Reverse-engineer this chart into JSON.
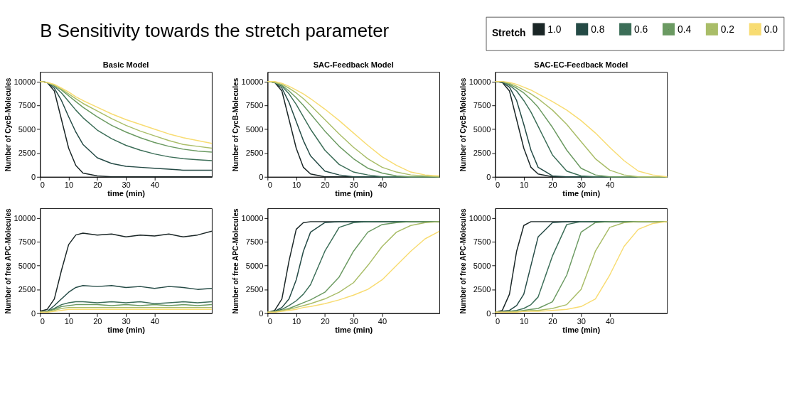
{
  "chart_data": [
    {
      "type": "line",
      "title": "Basic Model",
      "annotations": [
        "B Sensitivity towards the stretch parameter"
      ],
      "legend_title": "Stretch",
      "legend": "top right",
      "xlabel": "time (min)",
      "ylabel": "Number of CycB-Molecules",
      "xlim": [
        0,
        60
      ],
      "xticks": [
        0,
        10,
        20,
        30,
        40
      ],
      "ylim": [
        0,
        11000
      ],
      "yticks": [
        0,
        2500,
        5000,
        7500,
        10000
      ],
      "grid": false,
      "x": [
        0,
        2.5,
        5,
        7.5,
        10,
        12.5,
        15,
        20,
        25,
        30,
        35,
        40,
        45,
        50,
        55,
        60
      ],
      "series": [
        {
          "name": "1.0",
          "color": "#1a2626",
          "values": [
            10000,
            9900,
            9000,
            6000,
            3000,
            1200,
            400,
            100,
            0,
            0,
            0,
            0,
            0,
            0,
            0,
            0
          ]
        },
        {
          "name": "0.8",
          "color": "#244a45",
          "values": [
            10000,
            9900,
            9300,
            8000,
            6300,
            4700,
            3400,
            2000,
            1400,
            1100,
            1000,
            900,
            800,
            700,
            700,
            700
          ]
        },
        {
          "name": "0.6",
          "color": "#3c6e58",
          "values": [
            10000,
            9900,
            9500,
            8800,
            7900,
            7000,
            6200,
            4900,
            4000,
            3300,
            2800,
            2400,
            2100,
            1900,
            1800,
            1700
          ]
        },
        {
          "name": "0.4",
          "color": "#6b9a62",
          "values": [
            10000,
            9900,
            9600,
            9100,
            8500,
            7900,
            7300,
            6300,
            5400,
            4700,
            4100,
            3600,
            3200,
            2900,
            2700,
            2600
          ]
        },
        {
          "name": "0.2",
          "color": "#a9bd68",
          "values": [
            10000,
            9900,
            9600,
            9200,
            8700,
            8200,
            7700,
            6900,
            6100,
            5400,
            4800,
            4300,
            3800,
            3400,
            3200,
            3000
          ]
        },
        {
          "name": "0.0",
          "color": "#f8dc72",
          "values": [
            10000,
            9900,
            9700,
            9300,
            8900,
            8400,
            8000,
            7300,
            6600,
            6000,
            5500,
            5000,
            4500,
            4100,
            3800,
            3500
          ]
        }
      ]
    },
    {
      "type": "line",
      "title": "SAC-Feedback Model",
      "xlabel": "time (min)",
      "ylabel": "Number of CycB-Molecules",
      "xlim": [
        0,
        60
      ],
      "xticks": [
        0,
        10,
        20,
        30,
        40
      ],
      "ylim": [
        0,
        11000
      ],
      "yticks": [
        0,
        2500,
        5000,
        7500,
        10000
      ],
      "grid": false,
      "x": [
        0,
        2.5,
        5,
        7.5,
        10,
        12.5,
        15,
        20,
        25,
        30,
        35,
        40,
        45,
        50,
        55,
        60
      ],
      "series": [
        {
          "color": "#1a2626",
          "values": [
            10000,
            9900,
            9000,
            6000,
            3000,
            1000,
            300,
            0,
            0,
            0,
            0,
            0,
            0,
            0,
            0,
            0
          ]
        },
        {
          "color": "#244a45",
          "values": [
            10000,
            9900,
            9300,
            7800,
            5800,
            3800,
            2200,
            600,
            200,
            0,
            0,
            0,
            0,
            0,
            0,
            0
          ]
        },
        {
          "color": "#3c6e58",
          "values": [
            10000,
            9900,
            9500,
            8700,
            7600,
            6300,
            5000,
            2800,
            1300,
            500,
            200,
            0,
            0,
            0,
            0,
            0
          ]
        },
        {
          "color": "#6b9a62",
          "values": [
            10000,
            9900,
            9600,
            9000,
            8300,
            7500,
            6600,
            4800,
            3200,
            1900,
            900,
            400,
            100,
            0,
            0,
            0
          ]
        },
        {
          "color": "#a9bd68",
          "values": [
            10000,
            9900,
            9700,
            9300,
            8800,
            8200,
            7500,
            6000,
            4500,
            3100,
            1900,
            1000,
            500,
            200,
            100,
            0
          ]
        },
        {
          "color": "#f8dc72",
          "values": [
            10000,
            10000,
            9800,
            9500,
            9100,
            8700,
            8200,
            7100,
            5900,
            4600,
            3300,
            2100,
            1200,
            500,
            200,
            100
          ]
        }
      ]
    },
    {
      "type": "line",
      "title": "SAC-EC-Feedback Model",
      "xlabel": "time (min)",
      "ylabel": "Number of CycB-Molecules",
      "xlim": [
        0,
        60
      ],
      "xticks": [
        0,
        10,
        20,
        30,
        40
      ],
      "ylim": [
        0,
        11000
      ],
      "yticks": [
        0,
        2500,
        5000,
        7500,
        10000
      ],
      "grid": false,
      "x": [
        0,
        2.5,
        5,
        7.5,
        10,
        12.5,
        15,
        20,
        25,
        30,
        35,
        40,
        45,
        50,
        55,
        60
      ],
      "series": [
        {
          "color": "#1a2626",
          "values": [
            10000,
            9900,
            9000,
            6000,
            3000,
            1000,
            300,
            0,
            0,
            0,
            0,
            0,
            0,
            0,
            0,
            0
          ]
        },
        {
          "color": "#244a45",
          "values": [
            10000,
            9900,
            9400,
            8000,
            5500,
            2800,
            1000,
            100,
            0,
            0,
            0,
            0,
            0,
            0,
            0,
            0
          ]
        },
        {
          "color": "#3c6e58",
          "values": [
            10000,
            10000,
            9600,
            9000,
            8000,
            6800,
            5300,
            2300,
            600,
            100,
            0,
            0,
            0,
            0,
            0,
            0
          ]
        },
        {
          "color": "#6b9a62",
          "values": [
            10000,
            10000,
            9700,
            9300,
            8800,
            8100,
            7300,
            5200,
            2800,
            900,
            200,
            0,
            0,
            0,
            0,
            0
          ]
        },
        {
          "color": "#a9bd68",
          "values": [
            10000,
            10000,
            9800,
            9500,
            9100,
            8700,
            8200,
            7000,
            5500,
            3700,
            1900,
            700,
            200,
            0,
            0,
            0
          ]
        },
        {
          "color": "#f8dc72",
          "values": [
            10000,
            10000,
            9900,
            9700,
            9400,
            9100,
            8700,
            7900,
            7000,
            5900,
            4600,
            3100,
            1700,
            600,
            200,
            0
          ]
        }
      ]
    },
    {
      "type": "line",
      "xlabel": "time (min)",
      "ylabel": "Number of free APC-Molecules",
      "xlim": [
        0,
        60
      ],
      "xticks": [
        0,
        10,
        20,
        30,
        40
      ],
      "ylim": [
        0,
        11000
      ],
      "yticks": [
        0,
        2500,
        5000,
        7500,
        10000
      ],
      "grid": false,
      "x": [
        0,
        2.5,
        5,
        7.5,
        10,
        12.5,
        15,
        20,
        25,
        30,
        35,
        40,
        45,
        50,
        55,
        60
      ],
      "series": [
        {
          "color": "#1a2626",
          "values": [
            200,
            400,
            1500,
            4500,
            7200,
            8200,
            8400,
            8200,
            8300,
            8000,
            8200,
            8100,
            8300,
            8000,
            8200,
            8600
          ]
        },
        {
          "color": "#244a45",
          "values": [
            100,
            200,
            800,
            1500,
            2200,
            2700,
            2900,
            2800,
            2900,
            2700,
            2800,
            2600,
            2800,
            2700,
            2500,
            2600
          ]
        },
        {
          "color": "#3c6e58",
          "values": [
            100,
            200,
            500,
            900,
            1100,
            1200,
            1200,
            1100,
            1200,
            1100,
            1200,
            1000,
            1100,
            1200,
            1100,
            1200
          ]
        },
        {
          "color": "#6b9a62",
          "values": [
            100,
            200,
            400,
            700,
            800,
            900,
            900,
            900,
            800,
            900,
            800,
            900,
            800,
            900,
            800,
            900
          ]
        },
        {
          "color": "#a9bd68",
          "values": [
            100,
            100,
            300,
            500,
            600,
            600,
            600,
            600,
            600,
            600,
            600,
            600,
            600,
            600,
            600,
            600
          ]
        },
        {
          "color": "#f8dc72",
          "values": [
            100,
            100,
            200,
            300,
            400,
            400,
            400,
            400,
            400,
            400,
            400,
            400,
            400,
            400,
            400,
            400
          ]
        }
      ]
    },
    {
      "type": "line",
      "xlabel": "time (min)",
      "ylabel": "Number of free APC-Molecules",
      "xlim": [
        0,
        60
      ],
      "xticks": [
        0,
        10,
        20,
        30,
        40
      ],
      "ylim": [
        0,
        11000
      ],
      "yticks": [
        0,
        2500,
        5000,
        7500,
        10000
      ],
      "grid": false,
      "x": [
        0,
        2.5,
        5,
        7.5,
        10,
        12.5,
        15,
        20,
        25,
        30,
        35,
        40,
        45,
        50,
        55,
        60
      ],
      "series": [
        {
          "color": "#1a2626",
          "values": [
            100,
            300,
            1500,
            5500,
            8800,
            9500,
            9600,
            9600,
            9600,
            9600,
            9600,
            9600,
            9600,
            9600,
            9600,
            9600
          ]
        },
        {
          "color": "#244a45",
          "values": [
            100,
            200,
            600,
            1500,
            3500,
            6500,
            8500,
            9500,
            9600,
            9600,
            9600,
            9600,
            9600,
            9600,
            9600,
            9600
          ]
        },
        {
          "color": "#3c6e58",
          "values": [
            100,
            200,
            400,
            800,
            1300,
            2000,
            3000,
            6500,
            9000,
            9500,
            9600,
            9600,
            9600,
            9600,
            9600,
            9600
          ]
        },
        {
          "color": "#6b9a62",
          "values": [
            100,
            200,
            300,
            500,
            800,
            1100,
            1400,
            2200,
            3800,
            6500,
            8500,
            9300,
            9500,
            9600,
            9600,
            9600
          ]
        },
        {
          "color": "#a9bd68",
          "values": [
            100,
            100,
            300,
            400,
            600,
            800,
            1000,
            1500,
            2200,
            3200,
            5000,
            7000,
            8500,
            9200,
            9500,
            9600
          ]
        },
        {
          "color": "#f8dc72",
          "values": [
            100,
            100,
            200,
            300,
            400,
            600,
            700,
            1000,
            1400,
            1900,
            2500,
            3500,
            5000,
            6500,
            7800,
            8600
          ]
        }
      ]
    },
    {
      "type": "line",
      "xlabel": "time (min)",
      "ylabel": "Number of free APC-Molecules",
      "xlim": [
        0,
        60
      ],
      "xticks": [
        0,
        10,
        20,
        30,
        40
      ],
      "ylim": [
        0,
        11000
      ],
      "yticks": [
        0,
        2500,
        5000,
        7500,
        10000
      ],
      "grid": false,
      "x": [
        0,
        2.5,
        5,
        7.5,
        10,
        12.5,
        15,
        20,
        25,
        30,
        35,
        40,
        45,
        50,
        55,
        60
      ],
      "series": [
        {
          "color": "#1a2626",
          "values": [
            100,
            300,
            2000,
            6500,
            9200,
            9600,
            9600,
            9600,
            9600,
            9600,
            9600,
            9600,
            9600,
            9600,
            9600,
            9600
          ]
        },
        {
          "color": "#244a45",
          "values": [
            100,
            200,
            300,
            800,
            2000,
            5000,
            8000,
            9500,
            9600,
            9600,
            9600,
            9600,
            9600,
            9600,
            9600,
            9600
          ]
        },
        {
          "color": "#3c6e58",
          "values": [
            100,
            100,
            200,
            300,
            500,
            900,
            1700,
            6000,
            9300,
            9600,
            9600,
            9600,
            9600,
            9600,
            9600,
            9600
          ]
        },
        {
          "color": "#6b9a62",
          "values": [
            100,
            100,
            200,
            200,
            300,
            400,
            500,
            1200,
            4000,
            8500,
            9500,
            9600,
            9600,
            9600,
            9600,
            9600
          ]
        },
        {
          "color": "#a9bd68",
          "values": [
            100,
            100,
            100,
            200,
            200,
            300,
            300,
            500,
            900,
            2500,
            6500,
            9000,
            9500,
            9600,
            9600,
            9600
          ]
        },
        {
          "color": "#f8dc72",
          "values": [
            100,
            100,
            100,
            100,
            200,
            200,
            200,
            300,
            400,
            700,
            1500,
            4000,
            7000,
            8800,
            9400,
            9600
          ]
        }
      ]
    }
  ]
}
